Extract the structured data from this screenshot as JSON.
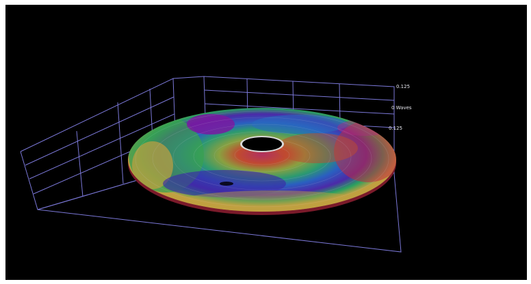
{
  "viewer": {
    "axis_labels": {
      "top": "0.125",
      "middle": "0 Waves",
      "bottom": "0.125"
    },
    "colors": {
      "background": "#000000",
      "grid": "#7b78d8",
      "label": "#e8e8f0"
    },
    "colormap": [
      "#4a1aa0",
      "#2a4fc0",
      "#1c8aa0",
      "#2aa060",
      "#6ab040",
      "#b0a030",
      "#c05a30",
      "#c02a3a",
      "#9a1a80"
    ]
  }
}
